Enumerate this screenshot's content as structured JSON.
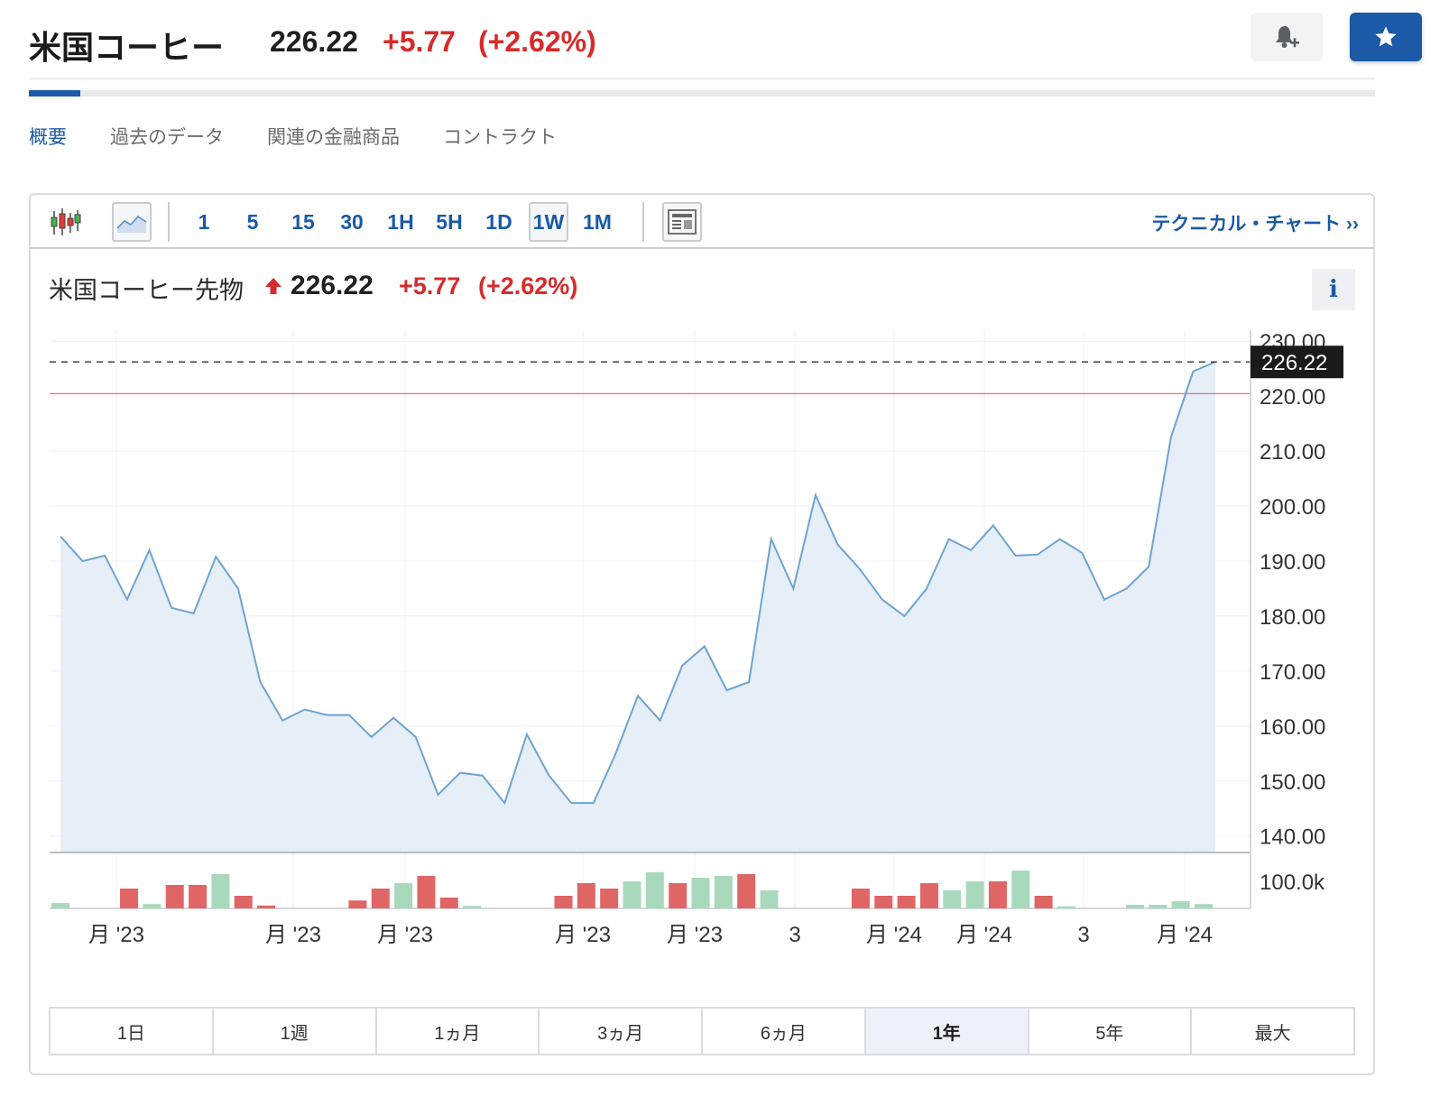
{
  "header": {
    "title": "米国コーヒー",
    "price": "226.22",
    "change": "+5.77",
    "change_pct": "(+2.62%)"
  },
  "tabs": [
    {
      "label": "概要",
      "active": true
    },
    {
      "label": "過去のデータ",
      "active": false
    },
    {
      "label": "関連の金融商品",
      "active": false
    },
    {
      "label": "コントラクト",
      "active": false
    }
  ],
  "toolbar": {
    "intervals": [
      "1",
      "5",
      "15",
      "30",
      "1H",
      "5H",
      "1D",
      "1W",
      "1M"
    ],
    "active_interval": "1W",
    "technical_link": "テクニカル・チャート ››"
  },
  "chart_header": {
    "name": "米国コーヒー先物",
    "price": "226.22",
    "change": "+5.77",
    "change_pct": "(+2.62%)"
  },
  "ranges": [
    "1日",
    "1週",
    "1ヵ月",
    "3ヵ月",
    "6ヵ月",
    "1年",
    "5年",
    "最大"
  ],
  "active_range": "1年",
  "colors": {
    "accent": "#1a5aa6",
    "down": "#d62b2b",
    "line": "#6fa3d2",
    "area": "#e6eef7",
    "vol_up": "#a8d9bd",
    "vol_down": "#e06666"
  },
  "chart_data": {
    "type": "area",
    "series": [
      {
        "values": [
          194.5,
          190,
          191,
          183,
          192,
          181.5,
          180.5,
          190.8,
          185,
          168,
          161,
          163,
          162,
          162,
          158,
          161.5,
          158,
          147.5,
          151.5,
          151,
          146,
          158.5,
          151,
          146,
          146,
          155,
          165.5,
          161,
          171,
          174.5,
          166.5,
          168,
          194,
          185,
          202,
          193,
          188.5,
          183,
          180,
          185,
          194,
          192,
          196.5,
          191,
          191.2,
          194,
          191.5,
          183,
          185,
          189,
          212.5,
          224.5,
          226.22
        ]
      }
    ],
    "current_price": 226.22,
    "reference_line": 220.45,
    "y_ticks": [
      "230.00",
      "220.00",
      "210.00",
      "200.00",
      "190.00",
      "180.00",
      "170.00",
      "160.00",
      "150.00",
      "140.00"
    ],
    "ylim": [
      137,
      232
    ],
    "x_labels": [
      "月 '23",
      "月 '23",
      "月 '23",
      "月 '23",
      "月 '23",
      "3",
      "月 '24",
      "月 '24",
      "3",
      "月 '24"
    ],
    "volume": {
      "label": "100.0k",
      "bars": [
        {
          "v": 0.15,
          "up": true
        },
        {
          "v": 0,
          "up": true
        },
        {
          "v": 0,
          "up": true
        },
        {
          "v": 0.55,
          "up": false
        },
        {
          "v": 0.12,
          "up": true
        },
        {
          "v": 0.65,
          "up": false
        },
        {
          "v": 0.65,
          "up": false
        },
        {
          "v": 0.95,
          "up": true
        },
        {
          "v": 0.35,
          "up": false
        },
        {
          "v": 0.08,
          "up": false
        },
        {
          "v": 0,
          "up": true
        },
        {
          "v": 0,
          "up": true
        },
        {
          "v": 0,
          "up": true
        },
        {
          "v": 0.22,
          "up": false
        },
        {
          "v": 0.55,
          "up": false
        },
        {
          "v": 0.7,
          "up": true
        },
        {
          "v": 0.9,
          "up": false
        },
        {
          "v": 0.3,
          "up": false
        },
        {
          "v": 0.07,
          "up": true
        },
        {
          "v": 0,
          "up": true
        },
        {
          "v": 0,
          "up": true
        },
        {
          "v": 0,
          "up": true
        },
        {
          "v": 0.35,
          "up": false
        },
        {
          "v": 0.7,
          "up": false
        },
        {
          "v": 0.55,
          "up": false
        },
        {
          "v": 0.75,
          "up": true
        },
        {
          "v": 1.0,
          "up": true
        },
        {
          "v": 0.7,
          "up": false
        },
        {
          "v": 0.85,
          "up": true
        },
        {
          "v": 0.9,
          "up": true
        },
        {
          "v": 0.95,
          "up": false
        },
        {
          "v": 0.5,
          "up": true
        },
        {
          "v": 0,
          "up": true
        },
        {
          "v": 0,
          "up": true
        },
        {
          "v": 0,
          "up": true
        },
        {
          "v": 0.55,
          "up": false
        },
        {
          "v": 0.35,
          "up": false
        },
        {
          "v": 0.35,
          "up": false
        },
        {
          "v": 0.7,
          "up": false
        },
        {
          "v": 0.5,
          "up": true
        },
        {
          "v": 0.75,
          "up": true
        },
        {
          "v": 0.75,
          "up": false
        },
        {
          "v": 1.05,
          "up": true
        },
        {
          "v": 0.35,
          "up": false
        },
        {
          "v": 0.06,
          "up": true
        },
        {
          "v": 0,
          "up": true
        },
        {
          "v": 0,
          "up": true
        },
        {
          "v": 0.1,
          "up": true
        },
        {
          "v": 0.1,
          "up": true
        },
        {
          "v": 0.2,
          "up": true
        },
        {
          "v": 0.12,
          "up": true
        }
      ]
    }
  }
}
